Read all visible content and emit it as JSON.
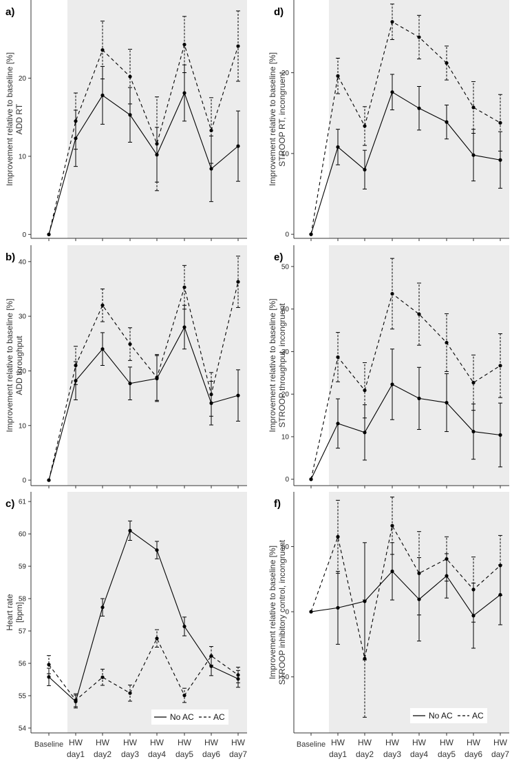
{
  "x_labels": [
    [
      "Baseline"
    ],
    [
      "HW",
      "day1"
    ],
    [
      "HW",
      "day2"
    ],
    [
      "HW",
      "day3"
    ],
    [
      "HW",
      "day4"
    ],
    [
      "HW",
      "day5"
    ],
    [
      "HW",
      "day6"
    ],
    [
      "HW",
      "day7"
    ]
  ],
  "legend": {
    "no_ac": "No AC",
    "ac": "AC"
  },
  "colors": {
    "shade": "#ececec",
    "line": "#000000"
  },
  "chart_data": [
    {
      "panel": "a)",
      "type": "line",
      "ylabel": [
        "Improvement relative to baseline [%]",
        "ADD RT"
      ],
      "ylim": [
        -0.5,
        30
      ],
      "yticks": [
        0,
        10,
        20
      ],
      "series": [
        {
          "name": "No AC",
          "style": "solid",
          "values": [
            0,
            12.3,
            17.8,
            15.3,
            10.2,
            18.1,
            8.4,
            11.3
          ],
          "err": [
            0,
            3.6,
            3.7,
            3.5,
            3.5,
            3.6,
            4.2,
            4.5
          ]
        },
        {
          "name": "AC",
          "style": "dashed",
          "values": [
            0,
            14.5,
            23.6,
            20.2,
            11.6,
            24.3,
            13.3,
            24.1
          ],
          "err": [
            0,
            3.6,
            3.7,
            3.5,
            6,
            3.6,
            4.2,
            4.5
          ]
        }
      ]
    },
    {
      "panel": "b)",
      "type": "line",
      "ylabel": [
        "Improvement relative to baseline [%]",
        "ADD throughput"
      ],
      "ylim": [
        -1,
        43
      ],
      "yticks": [
        0,
        10,
        20,
        30,
        40
      ],
      "series": [
        {
          "name": "No AC",
          "style": "solid",
          "values": [
            0,
            18.2,
            24.0,
            17.7,
            18.6,
            28.0,
            14.1,
            15.5
          ],
          "err": [
            0,
            3.5,
            3.0,
            3.0,
            4.2,
            4.0,
            4.0,
            4.7
          ]
        },
        {
          "name": "AC",
          "style": "dashed",
          "values": [
            0,
            21.0,
            32.0,
            24.9,
            18.8,
            35.3,
            15.7,
            36.3
          ],
          "err": [
            0,
            3.5,
            3.0,
            3.0,
            4.2,
            4.0,
            4.0,
            4.7
          ]
        }
      ]
    },
    {
      "panel": "c)",
      "type": "line",
      "ylabel": [
        "Heart rate",
        "[bpm]"
      ],
      "ylim": [
        53.85,
        61.3
      ],
      "yticks": [
        54,
        55,
        56,
        57,
        58,
        59,
        60,
        61
      ],
      "series": [
        {
          "name": "No AC",
          "style": "solid",
          "values": [
            55.58,
            54.82,
            57.73,
            60.1,
            59.5,
            57.14,
            55.91,
            55.52
          ],
          "err": [
            0.27,
            0.2,
            0.27,
            0.3,
            0.27,
            0.29,
            0.29,
            0.26
          ]
        },
        {
          "name": "AC",
          "style": "dashed",
          "values": [
            55.96,
            54.86,
            55.57,
            55.08,
            56.77,
            55.01,
            56.23,
            55.64
          ],
          "err": [
            0.28,
            0.2,
            0.25,
            0.25,
            0.27,
            0.22,
            0.29,
            0.24
          ]
        }
      ]
    },
    {
      "panel": "d)",
      "type": "line",
      "ylabel": [
        "Improvement relative to baseline [%]",
        "STROOP RT, incongruent"
      ],
      "ylim": [
        -0.5,
        29
      ],
      "yticks": [
        0,
        10,
        20
      ],
      "series": [
        {
          "name": "No AC",
          "style": "solid",
          "values": [
            0,
            10.8,
            8.0,
            17.6,
            15.6,
            13.9,
            9.8,
            9.2
          ],
          "err": [
            0,
            2.2,
            2.4,
            2.2,
            2.7,
            2.1,
            3.2,
            3.5
          ]
        },
        {
          "name": "AC",
          "style": "dashed",
          "values": [
            0,
            19.6,
            13.4,
            26.3,
            24.4,
            21.2,
            15.7,
            13.8
          ],
          "err": [
            0,
            2.2,
            2.4,
            2.2,
            2.7,
            2.1,
            3.2,
            3.5
          ]
        }
      ]
    },
    {
      "panel": "e)",
      "type": "line",
      "ylabel": [
        "Improvement relative to baseline [%]",
        "STROOP throughput, incongruent"
      ],
      "ylim": [
        -1.5,
        55
      ],
      "yticks": [
        0,
        10,
        20,
        30,
        40,
        50
      ],
      "series": [
        {
          "name": "No AC",
          "style": "solid",
          "values": [
            0,
            13.1,
            11.0,
            22.3,
            19.0,
            18.0,
            11.2,
            10.4
          ],
          "err": [
            0,
            5.8,
            6.5,
            8.3,
            7.3,
            6.8,
            6.5,
            7.5
          ]
        },
        {
          "name": "AC",
          "style": "dashed",
          "values": [
            0,
            28.7,
            20.9,
            43.6,
            38.8,
            32.1,
            22.7,
            26.7
          ],
          "err": [
            0,
            5.8,
            6.5,
            8.3,
            7.3,
            6.8,
            6.5,
            7.5
          ]
        }
      ]
    },
    {
      "panel": "f)",
      "type": "line",
      "ylabel": [
        "Improvement relative to baseline [%]",
        "STROOP inhibitory control, incongruent"
      ],
      "ylim": [
        -93,
        92
      ],
      "yticks": [
        -50,
        0,
        50
      ],
      "series": [
        {
          "name": "No AC",
          "style": "solid",
          "values": [
            0,
            3,
            8,
            31,
            9.5,
            27.5,
            -3,
            13
          ],
          "err": [
            0,
            28,
            45,
            22,
            32,
            17,
            25,
            23
          ]
        },
        {
          "name": "AC",
          "style": "dashed",
          "values": [
            0,
            57.5,
            -36,
            66,
            29.5,
            40.5,
            17,
            35.5
          ],
          "err": [
            0,
            28,
            45,
            22,
            32,
            17,
            25,
            23
          ]
        }
      ]
    }
  ]
}
